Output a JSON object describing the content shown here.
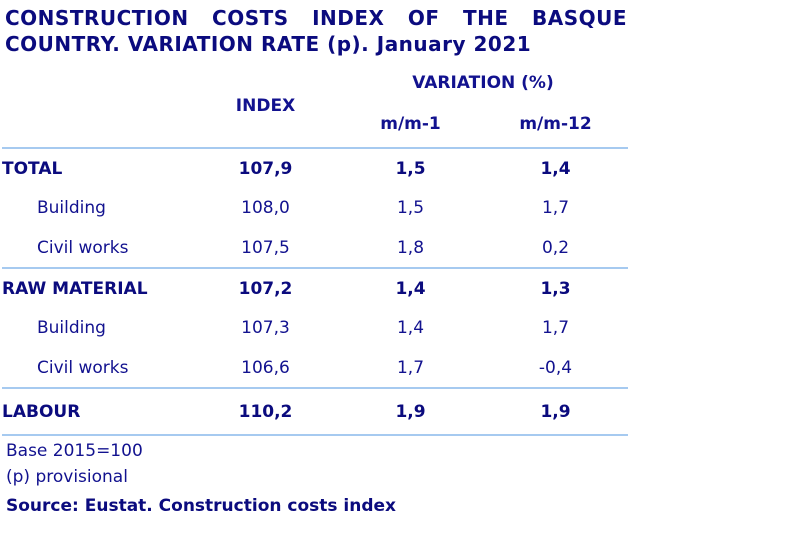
{
  "title": {
    "line1": "CONSTRUCTION COSTS INDEX OF THE BASQUE",
    "line2": "COUNTRY. VARIATION RATE (p). January 2021"
  },
  "chart_data": {
    "type": "table",
    "title": "CONSTRUCTION COSTS INDEX OF THE BASQUE COUNTRY. VARIATION RATE (p). January 2021",
    "header": {
      "index": "INDEX",
      "variation": "VARIATION (%)",
      "mm1": "m/m-1",
      "mm12": "m/m-12"
    },
    "rows": [
      {
        "label": "TOTAL",
        "index": "107,9",
        "mm1": "1,5",
        "mm12": "1,4",
        "emphasis": true,
        "indent": false
      },
      {
        "label": "Building",
        "index": "108,0",
        "mm1": "1,5",
        "mm12": "1,7",
        "emphasis": false,
        "indent": true
      },
      {
        "label": "Civil works",
        "index": "107,5",
        "mm1": "1,8",
        "mm12": "0,2",
        "emphasis": false,
        "indent": true
      },
      {
        "label": "RAW MATERIAL",
        "index": "107,2",
        "mm1": "1,4",
        "mm12": "1,3",
        "emphasis": true,
        "indent": false
      },
      {
        "label": "Building",
        "index": "107,3",
        "mm1": "1,4",
        "mm12": "1,7",
        "emphasis": false,
        "indent": true
      },
      {
        "label": "Civil works",
        "index": "106,6",
        "mm1": "1,7",
        "mm12": "-0,4",
        "emphasis": false,
        "indent": true
      },
      {
        "label": "LABOUR",
        "index": "110,2",
        "mm1": "1,9",
        "mm12": "1,9",
        "emphasis": true,
        "indent": false
      }
    ],
    "layout_hints": {
      "column_group_span": "VARIATION (%) spans m/m-1 and m/m-12",
      "group_separators_after_rows": [
        2,
        5
      ]
    }
  },
  "footnotes": {
    "base": "Base 2015=100",
    "provisional": "(p) provisional",
    "source": "Source: Eustat. Construction costs index"
  },
  "colors": {
    "text_navy_bold": "#0B0B7E",
    "text_navy_regular": "#12128F",
    "table_border_blue": "#A6CAF0",
    "background": "#FFFFFF"
  }
}
